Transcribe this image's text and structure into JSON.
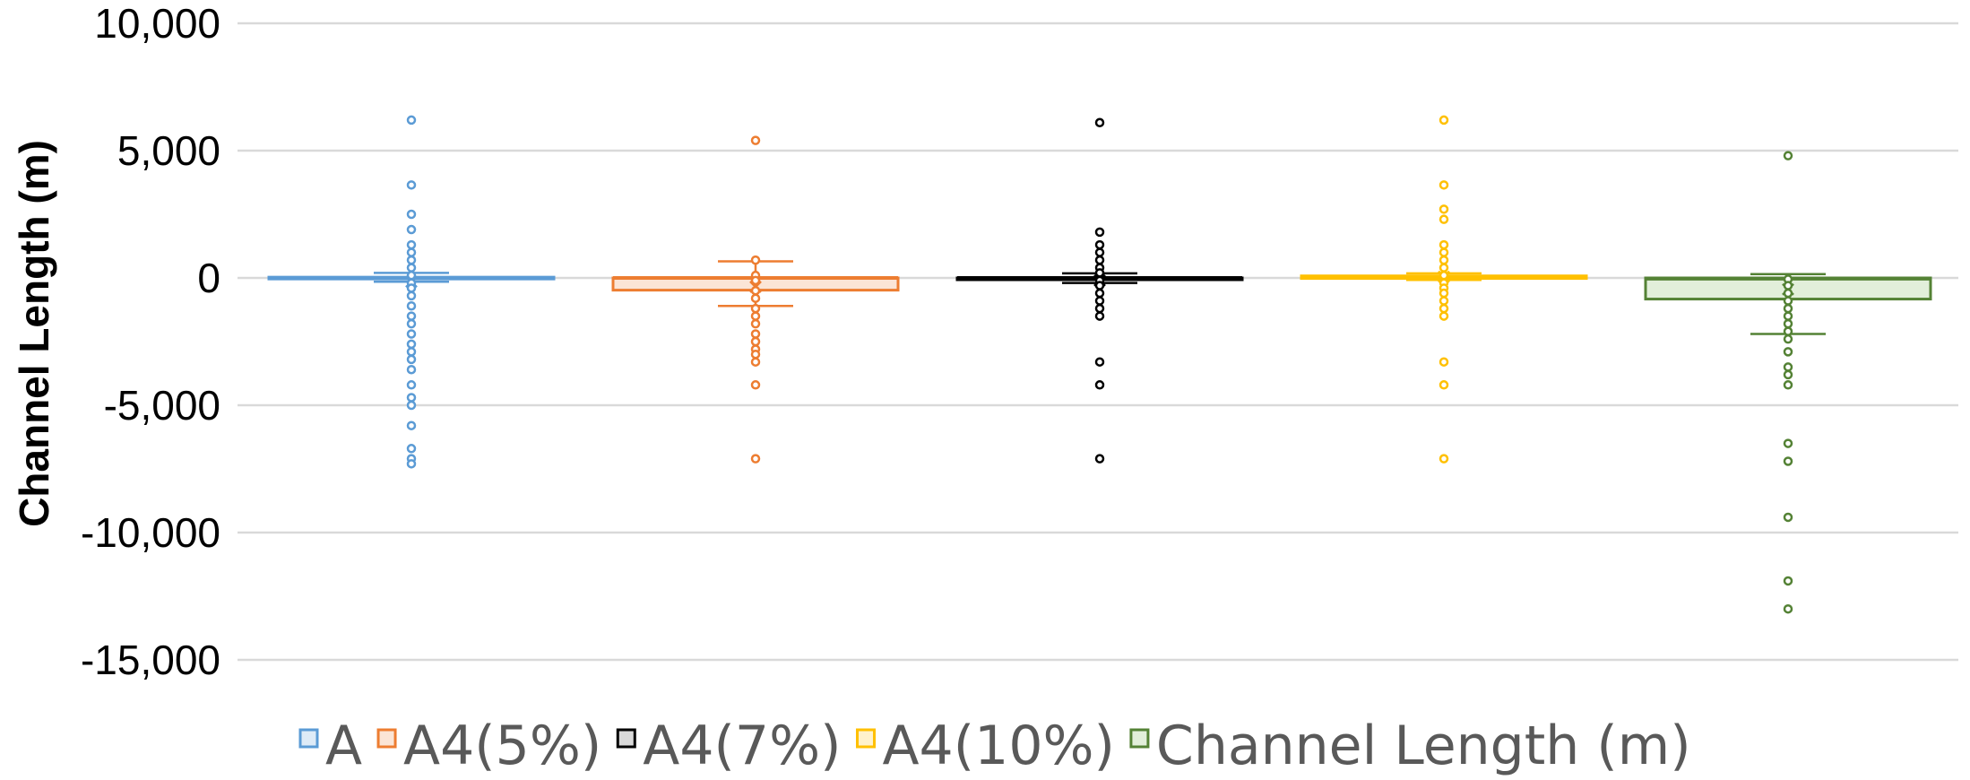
{
  "chart_data": {
    "type": "box",
    "title": "",
    "xlabel": "",
    "ylabel": "Channel Length (m)",
    "ylim": [
      -15000,
      10000
    ],
    "yticks": [
      10000,
      5000,
      0,
      -5000,
      -10000,
      -15000
    ],
    "ytick_labels": [
      "10,000",
      "5,000",
      "0",
      "-5,000",
      "-10,000",
      "-15,000"
    ],
    "grid": true,
    "legend_position": "bottom",
    "series": [
      {
        "name": "A",
        "color": "#5B9BD5",
        "fill": "#DEEBF7",
        "q1": -30,
        "median": 0,
        "q3": 30,
        "whisker_low": -150,
        "whisker_high": 200,
        "mean": -150,
        "outliers": [
          6200,
          3650,
          2500,
          1900,
          1300,
          1000,
          700,
          400,
          100,
          -200,
          -400,
          -700,
          -1100,
          -1500,
          -1800,
          -2200,
          -2600,
          -2900,
          -3200,
          -3600,
          -4200,
          -4700,
          -5000,
          -5800,
          -6700,
          -7100,
          -7300
        ]
      },
      {
        "name": "A4(5%)",
        "color": "#ED7D31",
        "fill": "#FBE5D6",
        "q1": -480,
        "median": 0,
        "q3": 0,
        "whisker_low": -1100,
        "whisker_high": 650,
        "mean": -350,
        "outliers": [
          5400,
          700,
          100,
          -100,
          -500,
          -800,
          -1200,
          -1500,
          -1800,
          -2200,
          -2500,
          -2800,
          -3000,
          -3300,
          -4200,
          -7100
        ]
      },
      {
        "name": "A4(7%)",
        "color": "#000000",
        "fill": "#D9D9D9",
        "q1": -60,
        "median": 0,
        "q3": 0,
        "whisker_low": -200,
        "whisker_high": 180,
        "mean": -100,
        "outliers": [
          6100,
          1800,
          1300,
          1000,
          700,
          400,
          200,
          -100,
          -300,
          -600,
          -900,
          -1200,
          -1500,
          -3300,
          -4200,
          -7100
        ]
      },
      {
        "name": "A4(10%)",
        "color": "#FFC000",
        "fill": "#FFF2CC",
        "q1": -20,
        "median": 0,
        "q3": 80,
        "whisker_low": -80,
        "whisker_high": 180,
        "mean": 50,
        "outliers": [
          6200,
          3650,
          2700,
          2300,
          1300,
          1000,
          700,
          400,
          100,
          -200,
          -400,
          -600,
          -900,
          -1200,
          -1500,
          -3300,
          -4200,
          -7100
        ]
      },
      {
        "name": "Channel Length (m)",
        "color": "#548235",
        "fill": "#E2EFDA",
        "q1": -830,
        "median": -30,
        "q3": 0,
        "whisker_low": -2200,
        "whisker_high": 150,
        "mean": -450,
        "outliers": [
          4800,
          -50,
          -300,
          -600,
          -900,
          -1200,
          -1500,
          -1800,
          -2100,
          -2400,
          -2900,
          -3500,
          -3800,
          -4200,
          -6500,
          -7200,
          -9400,
          -11900,
          -13000
        ]
      }
    ]
  }
}
